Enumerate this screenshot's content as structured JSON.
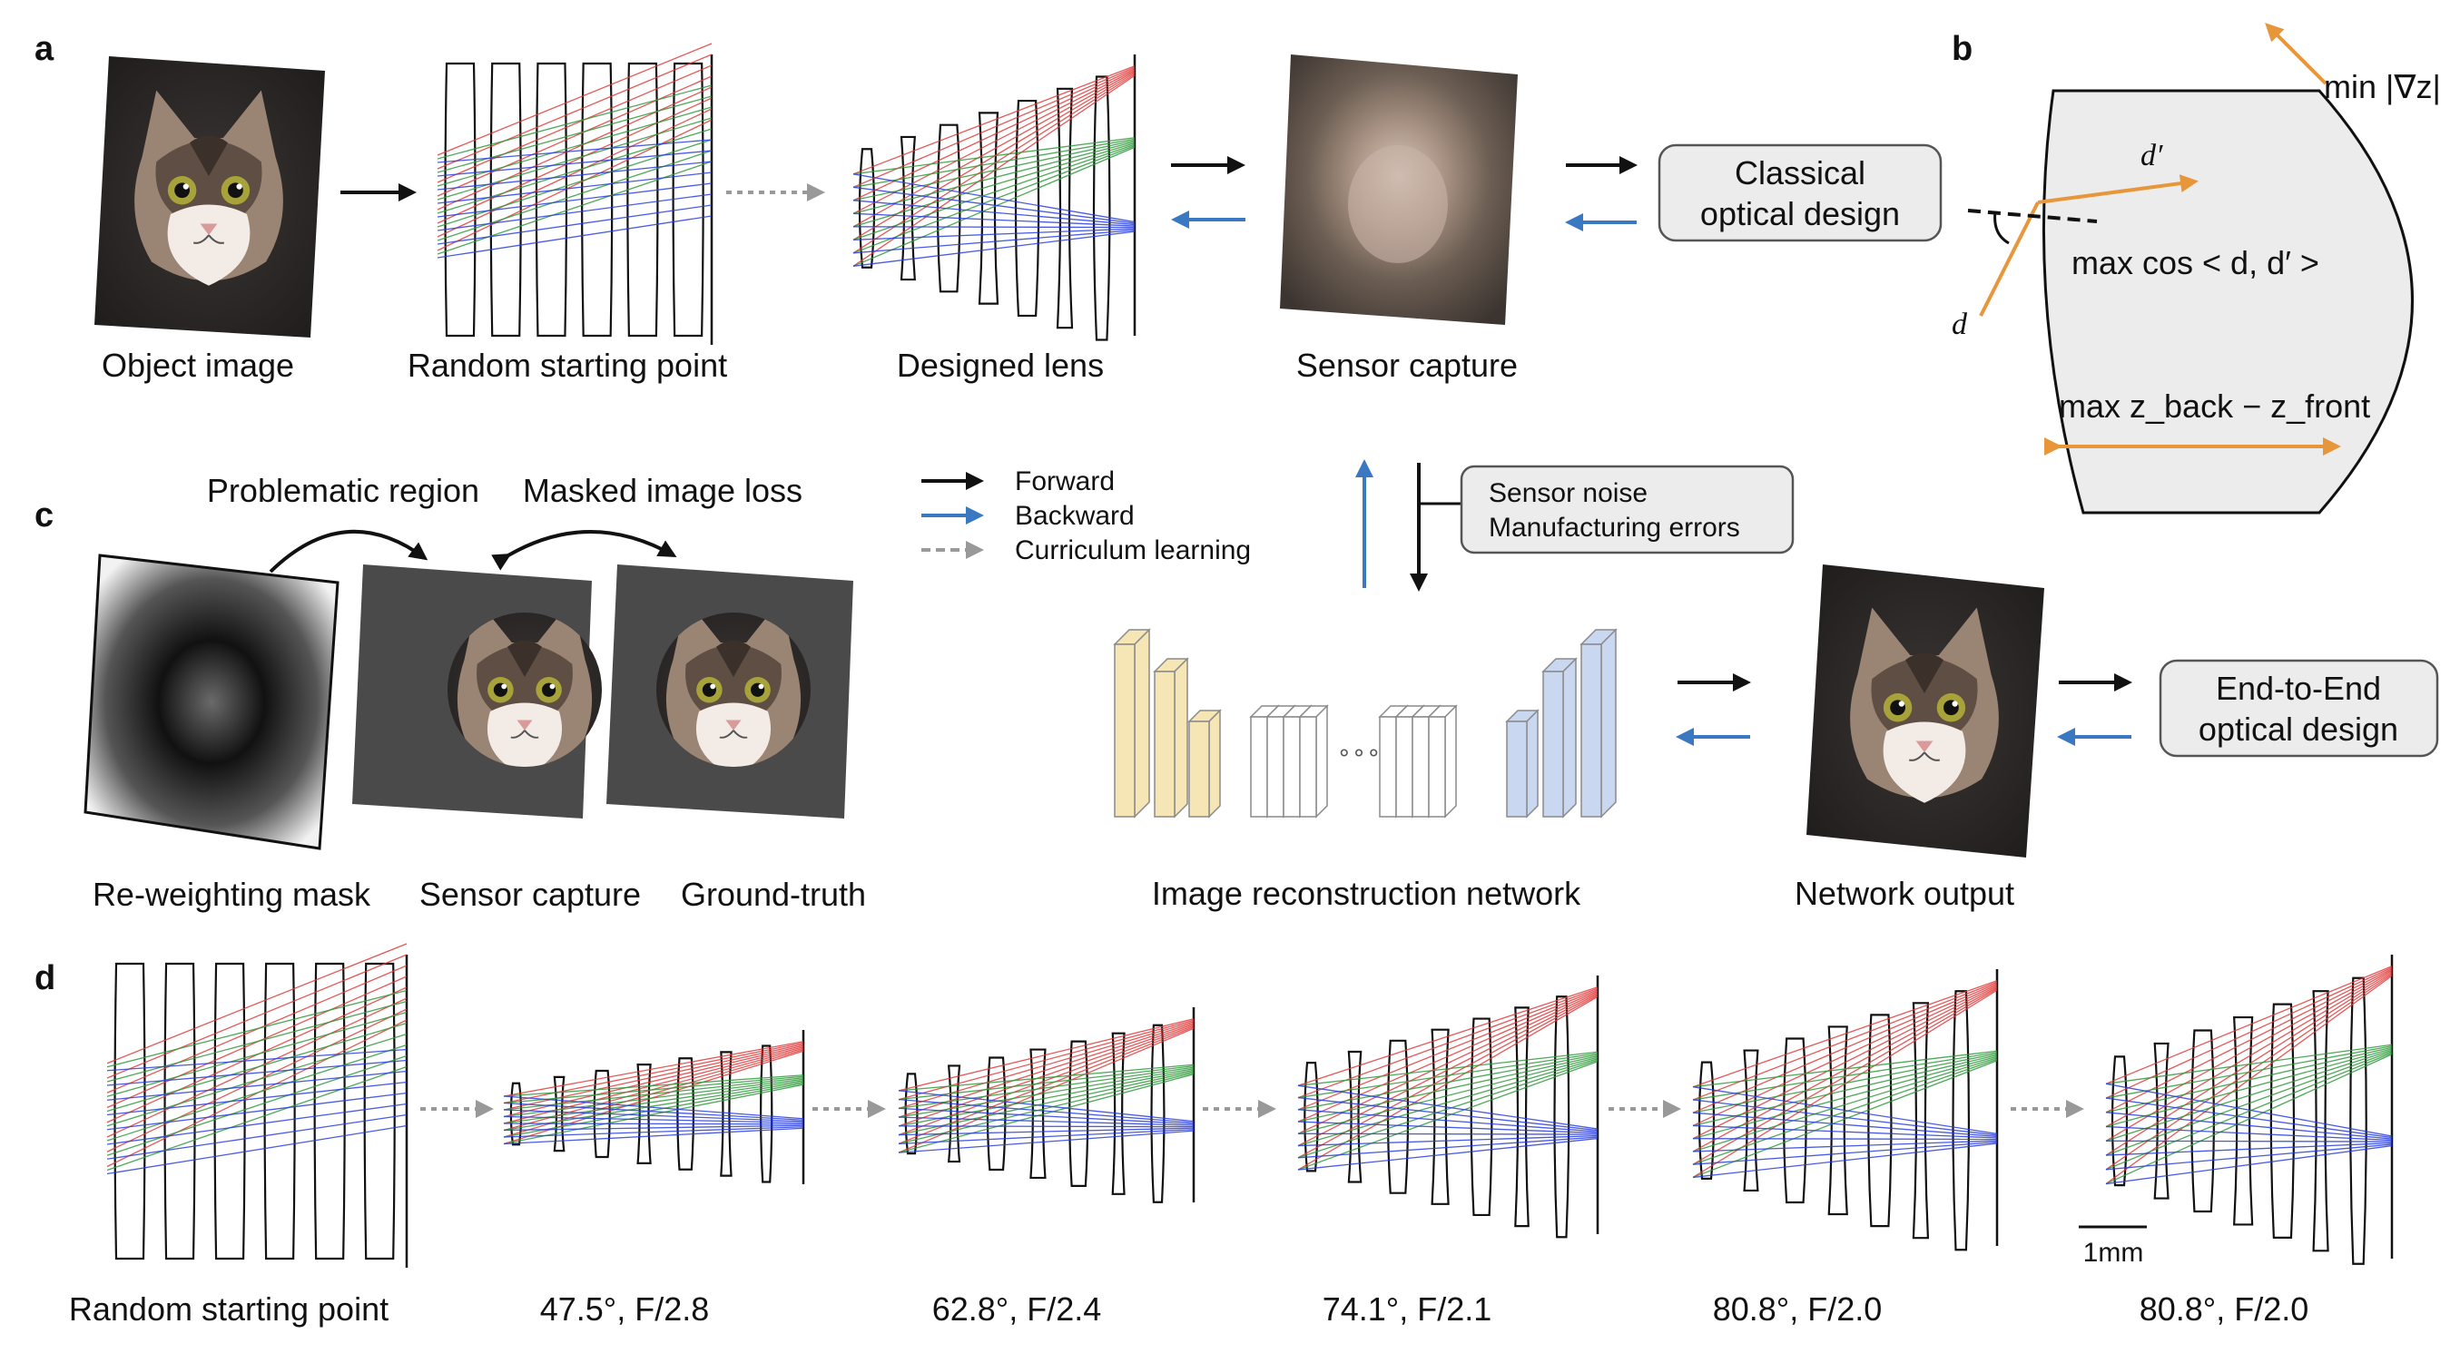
{
  "panel_letters": {
    "a": "a",
    "b": "b",
    "c": "c",
    "d": "d"
  },
  "panel_a": {
    "object_image": "Object image",
    "random_start": "Random starting point",
    "designed_lens": "Designed lens",
    "sensor_capture": "Sensor capture",
    "classical_design": [
      "Classical",
      "optical design"
    ]
  },
  "panel_b": {
    "min_grad": "min |∇z|",
    "d_prime": "d′",
    "d": "d",
    "max_cos": "max cos < d, d′ >",
    "max_z": "max z_back − z_front"
  },
  "panel_c": {
    "problematic_region": "Problematic region",
    "masked_loss": "Masked image loss",
    "reweighting_mask": "Re-weighting mask",
    "sensor_capture": "Sensor capture",
    "ground_truth": "Ground-truth"
  },
  "legend": {
    "forward": "Forward",
    "backward": "Backward",
    "curriculum": "Curriculum learning"
  },
  "noise_box": [
    "Sensor noise",
    "Manufacturing errors"
  ],
  "network_label": "Image reconstruction network",
  "network_output": "Network output",
  "e2e_design": [
    "End-to-End",
    "optical design"
  ],
  "panel_d": {
    "stages": [
      "Random starting point",
      "47.5°, F/2.8",
      "62.8°, F/2.4",
      "74.1°, F/2.1",
      "80.8°, F/2.0",
      "80.8°, F/2.0"
    ],
    "scale_bar": "1mm"
  },
  "colors": {
    "forward_arrow": "#111111",
    "backward_arrow": "#3a78c2",
    "curriculum_arrow": "#999999",
    "ray_red": "#e23a3a",
    "ray_green": "#2f9a3a",
    "ray_blue": "#2a3fe0",
    "orange": "#e8963a",
    "encoder": "#f6e6b5",
    "decoder": "#c9d8f0"
  }
}
